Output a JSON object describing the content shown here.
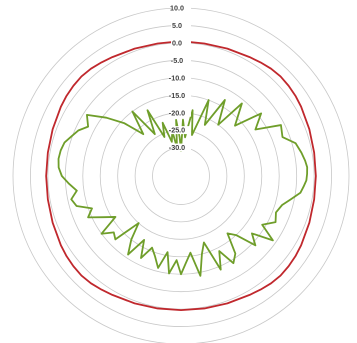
{
  "chart_data": {
    "type": "polar-line",
    "title": "",
    "grid": true,
    "legend": "none",
    "radial_axis": {
      "min": -35,
      "max": 10,
      "ticks": [
        10,
        5,
        0,
        -5,
        -10,
        -15,
        -20,
        -25,
        -30
      ],
      "tick_labels": [
        "10.0",
        "5.0",
        "0.0",
        "-5.0",
        "-10.0",
        "-15.0",
        "-20.0",
        "-25.0",
        "-30.0"
      ]
    },
    "angle_unit": "degrees",
    "angle_zero": "top",
    "angle_direction": "clockwise",
    "series": [
      {
        "color": "#c0282d",
        "points": [
          [
            0,
            0.5
          ],
          [
            10,
            0.4
          ],
          [
            20,
            0.7
          ],
          [
            30,
            1.2
          ],
          [
            35,
            1.6
          ],
          [
            40,
            2.0
          ],
          [
            45,
            2.2
          ],
          [
            50,
            2.1
          ],
          [
            55,
            1.9
          ],
          [
            60,
            1.6
          ],
          [
            70,
            1.0
          ],
          [
            80,
            0.6
          ],
          [
            90,
            0.5
          ],
          [
            100,
            0.6
          ],
          [
            110,
            1.0
          ],
          [
            120,
            1.6
          ],
          [
            125,
            1.9
          ],
          [
            130,
            2.1
          ],
          [
            135,
            2.2
          ],
          [
            140,
            2.0
          ],
          [
            145,
            1.6
          ],
          [
            150,
            1.2
          ],
          [
            160,
            0.7
          ],
          [
            170,
            0.4
          ],
          [
            180,
            0.3
          ],
          [
            190,
            0.4
          ],
          [
            200,
            0.7
          ],
          [
            210,
            1.2
          ],
          [
            215,
            1.6
          ],
          [
            220,
            2.0
          ],
          [
            225,
            2.2
          ],
          [
            230,
            2.1
          ],
          [
            235,
            1.9
          ],
          [
            240,
            1.6
          ],
          [
            250,
            1.0
          ],
          [
            260,
            0.6
          ],
          [
            270,
            0.5
          ],
          [
            280,
            0.6
          ],
          [
            290,
            1.0
          ],
          [
            300,
            1.6
          ],
          [
            305,
            1.9
          ],
          [
            310,
            2.1
          ],
          [
            315,
            2.2
          ],
          [
            320,
            2.0
          ],
          [
            325,
            1.6
          ],
          [
            330,
            1.2
          ],
          [
            340,
            0.7
          ],
          [
            350,
            0.4
          ],
          [
            360,
            0.5
          ]
        ]
      },
      {
        "color": "#6f9e2a",
        "points": [
          [
            0,
            -31
          ],
          [
            2,
            -22
          ],
          [
            6,
            -27
          ],
          [
            10,
            -19
          ],
          [
            15,
            -26
          ],
          [
            20,
            -15
          ],
          [
            25,
            -22
          ],
          [
            30,
            -13
          ],
          [
            36,
            -20
          ],
          [
            40,
            -11
          ],
          [
            47,
            -17
          ],
          [
            52,
            -9
          ],
          [
            58,
            -13
          ],
          [
            63,
            -6
          ],
          [
            69,
            -7
          ],
          [
            74,
            -4
          ],
          [
            79,
            -3
          ],
          [
            83,
            -2.3
          ],
          [
            86,
            -1.9
          ],
          [
            89,
            -2.0
          ],
          [
            92,
            -2.2
          ],
          [
            95,
            -2.9
          ],
          [
            98,
            -3.6
          ],
          [
            102,
            -6
          ],
          [
            106,
            -8
          ],
          [
            111,
            -9
          ],
          [
            116,
            -8
          ],
          [
            121,
            -11
          ],
          [
            125,
            -6
          ],
          [
            129,
            -12
          ],
          [
            133,
            -9
          ],
          [
            137,
            -15
          ],
          [
            141,
            -17
          ],
          [
            145,
            -11
          ],
          [
            149,
            -9
          ],
          [
            153,
            -14
          ],
          [
            157,
            -9
          ],
          [
            161,
            -18
          ],
          [
            165,
            -15
          ],
          [
            169,
            -9
          ],
          [
            173,
            -16
          ],
          [
            177,
            -13
          ],
          [
            180,
            -10
          ],
          [
            183,
            -14
          ],
          [
            187,
            -10
          ],
          [
            190,
            -16
          ],
          [
            194,
            -11
          ],
          [
            198,
            -14
          ],
          [
            202,
            -16
          ],
          [
            206,
            -12
          ],
          [
            210,
            -17
          ],
          [
            214,
            -11
          ],
          [
            218,
            -15
          ],
          [
            222,
            -20
          ],
          [
            226,
            -12
          ],
          [
            230,
            -13
          ],
          [
            234,
            -10
          ],
          [
            238,
            -16
          ],
          [
            242,
            -13
          ],
          [
            246,
            -9
          ],
          [
            250,
            -11
          ],
          [
            254,
            -7
          ],
          [
            258,
            -6
          ],
          [
            262,
            -8
          ],
          [
            266,
            -6
          ],
          [
            270,
            -4
          ],
          [
            274,
            -3
          ],
          [
            278,
            -2.7
          ],
          [
            282,
            -2.9
          ],
          [
            286,
            -3.4
          ],
          [
            290,
            -4.8
          ],
          [
            294,
            -6
          ],
          [
            298,
            -8
          ],
          [
            303,
            -6
          ],
          [
            308,
            -11
          ],
          [
            313,
            -16
          ],
          [
            318,
            -22
          ],
          [
            323,
            -15
          ],
          [
            328,
            -24
          ],
          [
            333,
            -17
          ],
          [
            337,
            -26
          ],
          [
            341,
            -22
          ],
          [
            345,
            -28
          ],
          [
            349,
            -25
          ],
          [
            352,
            -30
          ],
          [
            355,
            -22
          ],
          [
            358,
            -27
          ],
          [
            360,
            -31
          ]
        ]
      }
    ]
  }
}
